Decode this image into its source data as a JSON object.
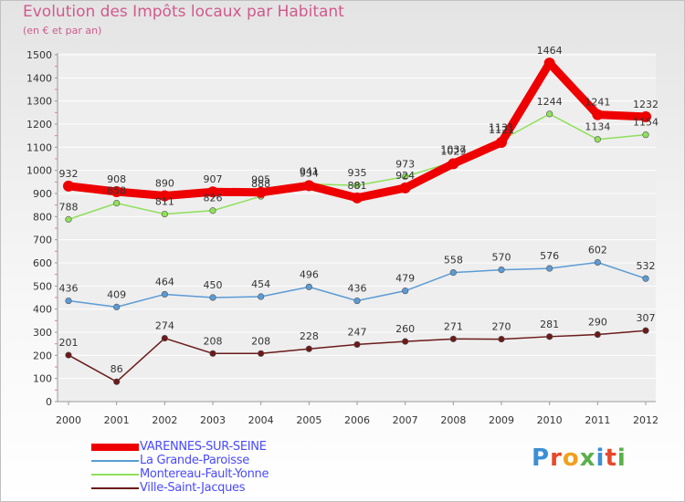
{
  "header": {
    "title": "Evolution des Impôts locaux par Habitant",
    "subtitle": "(en € et par an)"
  },
  "logo": {
    "text": "Proxiti"
  },
  "chart_data": {
    "type": "line",
    "title": "Evolution des Impôts locaux par Habitant",
    "subtitle": "(en € et par an)",
    "xlabel": "",
    "ylabel": "",
    "ylim": [
      0,
      1500
    ],
    "ytick_step": 100,
    "grid": "horizontal",
    "legend": "bottom-left",
    "x": [
      "2000",
      "2001",
      "2002",
      "2003",
      "2004",
      "2005",
      "2006",
      "2007",
      "2008",
      "2009",
      "2010",
      "2011",
      "2012"
    ],
    "series": [
      {
        "name": "VARENNES-SUR-SEINE",
        "color": "#ee0000",
        "values": [
          932,
          908,
          890,
          907,
          905,
          934,
          881,
          924,
          1029,
          1121,
          1464,
          1241,
          1232
        ]
      },
      {
        "name": "La Grande-Paroisse",
        "color": "#5b9bd5",
        "values": [
          436,
          409,
          464,
          450,
          454,
          496,
          436,
          479,
          558,
          570,
          576,
          602,
          532
        ]
      },
      {
        "name": "Montereau-Fault-Yonne",
        "color": "#8fe05a",
        "values": [
          788,
          858,
          811,
          826,
          888,
          941,
          935,
          973,
          1037,
          1131,
          1244,
          1134,
          1154
        ]
      },
      {
        "name": "Ville-Saint-Jacques",
        "color": "#6b1a1a",
        "values": [
          201,
          86,
          274,
          208,
          208,
          228,
          247,
          260,
          271,
          270,
          281,
          290,
          307
        ]
      }
    ]
  }
}
